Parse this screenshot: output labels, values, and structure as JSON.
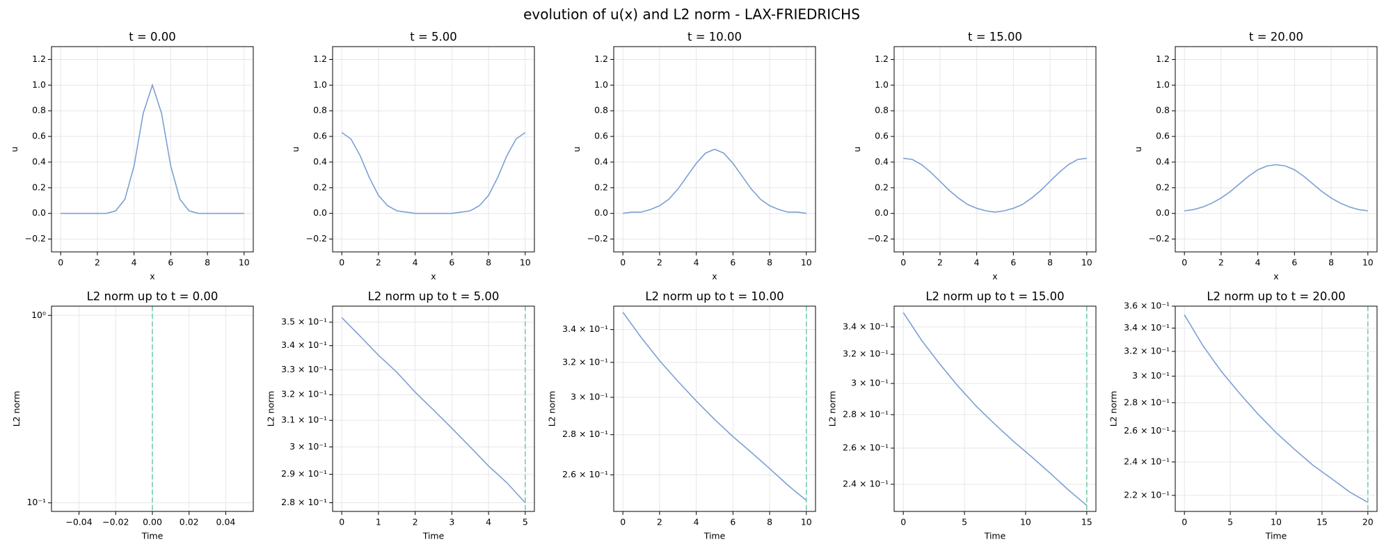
{
  "title": "evolution of u(x) and L2 norm - LAX-FRIEDRICHS",
  "chart_data": [
    {
      "type": "line",
      "title": "t = 0.00",
      "xlabel": "x",
      "ylabel": "u",
      "color": "#7b9fd4",
      "grid": true,
      "x": [
        0,
        0.5,
        1,
        1.5,
        2,
        2.5,
        3,
        3.5,
        4,
        4.5,
        5,
        5.5,
        6,
        6.5,
        7,
        7.5,
        8,
        8.5,
        9,
        9.5,
        10
      ],
      "values": [
        0,
        0,
        0,
        0,
        0,
        0,
        0.02,
        0.11,
        0.37,
        0.78,
        1,
        0.78,
        0.37,
        0.11,
        0.02,
        0,
        0,
        0,
        0,
        0,
        0
      ],
      "xlim": [
        -0.5,
        10.5
      ],
      "xticks": [
        0,
        2,
        4,
        6,
        8,
        10
      ],
      "ylim": [
        -0.3,
        1.3
      ],
      "yticks": [
        {
          "value": -0.2,
          "label": "−0.2"
        },
        {
          "value": 0,
          "label": "0.0"
        },
        {
          "value": 0.2,
          "label": "0.2"
        },
        {
          "value": 0.4,
          "label": "0.4"
        },
        {
          "value": 0.6,
          "label": "0.6"
        },
        {
          "value": 0.8,
          "label": "0.8"
        },
        {
          "value": 1,
          "label": "1.0"
        },
        {
          "value": 1.2,
          "label": "1.2"
        }
      ]
    },
    {
      "type": "line",
      "title": "t = 5.00",
      "xlabel": "x",
      "ylabel": "u",
      "color": "#7b9fd4",
      "grid": true,
      "x": [
        0,
        0.5,
        1,
        1.5,
        2,
        2.5,
        3,
        3.5,
        4,
        4.5,
        5,
        5.5,
        6,
        6.5,
        7,
        7.5,
        8,
        8.5,
        9,
        9.5,
        10
      ],
      "values": [
        0.63,
        0.58,
        0.45,
        0.28,
        0.14,
        0.06,
        0.02,
        0.01,
        0,
        0,
        0,
        0,
        0,
        0.01,
        0.02,
        0.06,
        0.14,
        0.28,
        0.45,
        0.58,
        0.63
      ],
      "xlim": [
        -0.5,
        10.5
      ],
      "xticks": [
        0,
        2,
        4,
        6,
        8,
        10
      ],
      "ylim": [
        -0.3,
        1.3
      ],
      "yticks": [
        {
          "value": -0.2,
          "label": "−0.2"
        },
        {
          "value": 0,
          "label": "0.0"
        },
        {
          "value": 0.2,
          "label": "0.2"
        },
        {
          "value": 0.4,
          "label": "0.4"
        },
        {
          "value": 0.6,
          "label": "0.6"
        },
        {
          "value": 0.8,
          "label": "0.8"
        },
        {
          "value": 1,
          "label": "1.0"
        },
        {
          "value": 1.2,
          "label": "1.2"
        }
      ]
    },
    {
      "type": "line",
      "title": "t = 10.00",
      "xlabel": "x",
      "ylabel": "u",
      "color": "#7b9fd4",
      "grid": true,
      "x": [
        0,
        0.5,
        1,
        1.5,
        2,
        2.5,
        3,
        3.5,
        4,
        4.5,
        5,
        5.5,
        6,
        6.5,
        7,
        7.5,
        8,
        8.5,
        9,
        9.5,
        10
      ],
      "values": [
        0,
        0.01,
        0.01,
        0.03,
        0.06,
        0.11,
        0.19,
        0.29,
        0.39,
        0.47,
        0.5,
        0.47,
        0.39,
        0.29,
        0.19,
        0.11,
        0.06,
        0.03,
        0.01,
        0.01,
        0
      ],
      "xlim": [
        -0.5,
        10.5
      ],
      "xticks": [
        0,
        2,
        4,
        6,
        8,
        10
      ],
      "ylim": [
        -0.3,
        1.3
      ],
      "yticks": [
        {
          "value": -0.2,
          "label": "−0.2"
        },
        {
          "value": 0,
          "label": "0.0"
        },
        {
          "value": 0.2,
          "label": "0.2"
        },
        {
          "value": 0.4,
          "label": "0.4"
        },
        {
          "value": 0.6,
          "label": "0.6"
        },
        {
          "value": 0.8,
          "label": "0.8"
        },
        {
          "value": 1,
          "label": "1.0"
        },
        {
          "value": 1.2,
          "label": "1.2"
        }
      ]
    },
    {
      "type": "line",
      "title": "t = 15.00",
      "xlabel": "x",
      "ylabel": "u",
      "color": "#7b9fd4",
      "grid": true,
      "x": [
        0,
        0.5,
        1,
        1.5,
        2,
        2.5,
        3,
        3.5,
        4,
        4.5,
        5,
        5.5,
        6,
        6.5,
        7,
        7.5,
        8,
        8.5,
        9,
        9.5,
        10
      ],
      "values": [
        0.43,
        0.42,
        0.38,
        0.32,
        0.25,
        0.18,
        0.12,
        0.07,
        0.04,
        0.02,
        0.01,
        0.02,
        0.04,
        0.07,
        0.12,
        0.18,
        0.25,
        0.32,
        0.38,
        0.42,
        0.43
      ],
      "xlim": [
        -0.5,
        10.5
      ],
      "xticks": [
        0,
        2,
        4,
        6,
        8,
        10
      ],
      "ylim": [
        -0.3,
        1.3
      ],
      "yticks": [
        {
          "value": -0.2,
          "label": "−0.2"
        },
        {
          "value": 0,
          "label": "0.0"
        },
        {
          "value": 0.2,
          "label": "0.2"
        },
        {
          "value": 0.4,
          "label": "0.4"
        },
        {
          "value": 0.6,
          "label": "0.6"
        },
        {
          "value": 0.8,
          "label": "0.8"
        },
        {
          "value": 1,
          "label": "1.0"
        },
        {
          "value": 1.2,
          "label": "1.2"
        }
      ]
    },
    {
      "type": "line",
      "title": "t = 20.00",
      "xlabel": "x",
      "ylabel": "u",
      "color": "#7b9fd4",
      "grid": true,
      "x": [
        0,
        0.5,
        1,
        1.5,
        2,
        2.5,
        3,
        3.5,
        4,
        4.5,
        5,
        5.5,
        6,
        6.5,
        7,
        7.5,
        8,
        8.5,
        9,
        9.5,
        10
      ],
      "values": [
        0.02,
        0.03,
        0.05,
        0.08,
        0.12,
        0.17,
        0.23,
        0.29,
        0.34,
        0.37,
        0.38,
        0.37,
        0.34,
        0.29,
        0.23,
        0.17,
        0.12,
        0.08,
        0.05,
        0.03,
        0.02
      ],
      "xlim": [
        -0.5,
        10.5
      ],
      "xticks": [
        0,
        2,
        4,
        6,
        8,
        10
      ],
      "ylim": [
        -0.3,
        1.3
      ],
      "yticks": [
        {
          "value": -0.2,
          "label": "−0.2"
        },
        {
          "value": 0,
          "label": "0.0"
        },
        {
          "value": 0.2,
          "label": "0.2"
        },
        {
          "value": 0.4,
          "label": "0.4"
        },
        {
          "value": 0.6,
          "label": "0.6"
        },
        {
          "value": 0.8,
          "label": "0.8"
        },
        {
          "value": 1,
          "label": "1.0"
        },
        {
          "value": 1.2,
          "label": "1.2"
        }
      ]
    },
    {
      "type": "line",
      "title": "L2 norm up to t = 0.00",
      "xlabel": "Time",
      "ylabel": "L2 norm",
      "color": "#7b9fd4",
      "grid": true,
      "yscale": "log",
      "current_time": 0,
      "marker_color": "#72cfa7",
      "xlim": [
        -0.055,
        0.055
      ],
      "xticks": [
        {
          "value": -0.04,
          "label": "−0.04"
        },
        {
          "value": -0.02,
          "label": "−0.02"
        },
        {
          "value": 0,
          "label": "0.00"
        },
        {
          "value": 0.02,
          "label": "0.02"
        },
        {
          "value": 0.04,
          "label": "0.04"
        }
      ],
      "ylim": [
        0.09,
        1.12
      ],
      "yticks": [
        {
          "value": 0.1,
          "label": "10⁻¹"
        },
        {
          "value": 1,
          "label": "10⁰"
        }
      ]
    },
    {
      "type": "line",
      "title": "L2 norm up to t = 5.00",
      "xlabel": "Time",
      "ylabel": "L2 norm",
      "color": "#7b9fd4",
      "grid": true,
      "yscale": "log",
      "current_time": 5,
      "marker_color": "#72cfa7",
      "x": [
        0,
        0.5,
        1,
        1.5,
        2,
        2.5,
        3,
        3.5,
        4,
        4.5,
        5
      ],
      "values": [
        0.352,
        0.344,
        0.336,
        0.329,
        0.321,
        0.314,
        0.307,
        0.3,
        0.293,
        0.287,
        0.28
      ],
      "xlim": [
        -0.25,
        5.25
      ],
      "xticks": [
        0,
        1,
        2,
        3,
        4,
        5
      ],
      "ylim": [
        0.277,
        0.357
      ],
      "yticks": [
        {
          "value": 0.28,
          "label": "2.8 × 10⁻¹"
        },
        {
          "value": 0.29,
          "label": "2.9 × 10⁻¹"
        },
        {
          "value": 0.3,
          "label": "3 × 10⁻¹"
        },
        {
          "value": 0.31,
          "label": "3.1 × 10⁻¹"
        },
        {
          "value": 0.32,
          "label": "3.2 × 10⁻¹"
        },
        {
          "value": 0.33,
          "label": "3.3 × 10⁻¹"
        },
        {
          "value": 0.34,
          "label": "3.4 × 10⁻¹"
        },
        {
          "value": 0.35,
          "label": "3.5 × 10⁻¹"
        }
      ]
    },
    {
      "type": "line",
      "title": "L2 norm up to t = 10.00",
      "xlabel": "Time",
      "ylabel": "L2 norm",
      "color": "#7b9fd4",
      "grid": true,
      "yscale": "log",
      "current_time": 10,
      "marker_color": "#72cfa7",
      "x": [
        0,
        1,
        2,
        3,
        4,
        5,
        6,
        7,
        8,
        9,
        10
      ],
      "values": [
        0.351,
        0.335,
        0.321,
        0.309,
        0.298,
        0.288,
        0.279,
        0.271,
        0.263,
        0.255,
        0.248
      ],
      "xlim": [
        -0.5,
        10.5
      ],
      "xticks": [
        0,
        2,
        4,
        6,
        8,
        10
      ],
      "ylim": [
        0.243,
        0.355
      ],
      "yticks": [
        {
          "value": 0.26,
          "label": "2.6 × 10⁻¹"
        },
        {
          "value": 0.28,
          "label": "2.8 × 10⁻¹"
        },
        {
          "value": 0.3,
          "label": "3 × 10⁻¹"
        },
        {
          "value": 0.32,
          "label": "3.2 × 10⁻¹"
        },
        {
          "value": 0.34,
          "label": "3.4 × 10⁻¹"
        }
      ]
    },
    {
      "type": "line",
      "title": "L2 norm up to t = 15.00",
      "xlabel": "Time",
      "ylabel": "L2 norm",
      "color": "#7b9fd4",
      "grid": true,
      "yscale": "log",
      "current_time": 15,
      "marker_color": "#72cfa7",
      "x": [
        0,
        1.5,
        3,
        4.5,
        6,
        7.5,
        9,
        10.5,
        12,
        13.5,
        15
      ],
      "values": [
        0.351,
        0.33,
        0.313,
        0.298,
        0.285,
        0.274,
        0.264,
        0.255,
        0.246,
        0.237,
        0.229
      ],
      "xlim": [
        -0.75,
        15.75
      ],
      "xticks": [
        0,
        5,
        10,
        15
      ],
      "ylim": [
        0.226,
        0.356
      ],
      "yticks": [
        {
          "value": 0.24,
          "label": "2.4 × 10⁻¹"
        },
        {
          "value": 0.26,
          "label": "2.6 × 10⁻¹"
        },
        {
          "value": 0.28,
          "label": "2.8 × 10⁻¹"
        },
        {
          "value": 0.3,
          "label": "3 × 10⁻¹"
        },
        {
          "value": 0.32,
          "label": "3.2 × 10⁻¹"
        },
        {
          "value": 0.34,
          "label": "3.4 × 10⁻¹"
        }
      ]
    },
    {
      "type": "line",
      "title": "L2 norm up to t = 20.00",
      "xlabel": "Time",
      "ylabel": "L2 norm",
      "color": "#7b9fd4",
      "grid": true,
      "yscale": "log",
      "current_time": 20,
      "marker_color": "#72cfa7",
      "x": [
        0,
        2,
        4,
        6,
        8,
        10,
        12,
        14,
        16,
        18,
        20
      ],
      "values": [
        0.352,
        0.325,
        0.304,
        0.287,
        0.272,
        0.259,
        0.248,
        0.238,
        0.23,
        0.222,
        0.216
      ],
      "xlim": [
        -1,
        21
      ],
      "xticks": [
        0,
        5,
        10,
        15,
        20
      ],
      "ylim": [
        0.211,
        0.36
      ],
      "yticks": [
        {
          "value": 0.22,
          "label": "2.2 × 10⁻¹"
        },
        {
          "value": 0.24,
          "label": "2.4 × 10⁻¹"
        },
        {
          "value": 0.26,
          "label": "2.6 × 10⁻¹"
        },
        {
          "value": 0.28,
          "label": "2.8 × 10⁻¹"
        },
        {
          "value": 0.3,
          "label": "3 × 10⁻¹"
        },
        {
          "value": 0.32,
          "label": "3.2 × 10⁻¹"
        },
        {
          "value": 0.34,
          "label": "3.4 × 10⁻¹"
        },
        {
          "value": 0.36,
          "label": "3.6 × 10⁻¹"
        }
      ]
    }
  ]
}
